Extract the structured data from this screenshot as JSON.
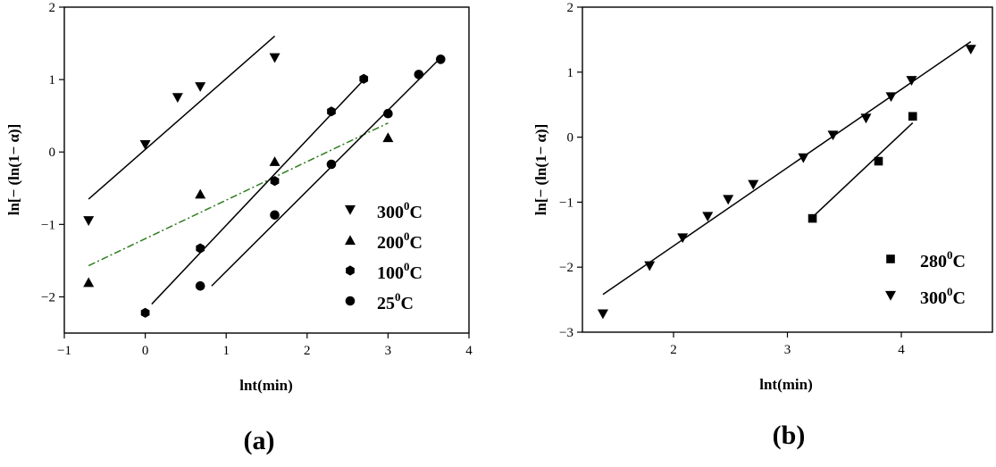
{
  "chart_data": [
    {
      "type": "scatter",
      "panel_label": "(a)",
      "xlabel": "lnt(min)",
      "ylabel": "ln[− (ln(1− α)]",
      "xlim": [
        -1,
        4
      ],
      "ylim": [
        -2.5,
        2
      ],
      "xticks": [
        -1,
        0,
        1,
        2,
        3,
        4
      ],
      "yticks": [
        -2,
        -1,
        0,
        1,
        2
      ],
      "legend_position": "right",
      "series": [
        {
          "name": "300",
          "unit": "C",
          "marker": "triangle-down",
          "x": [
            -0.7,
            0.0,
            0.4,
            0.68,
            1.6
          ],
          "y": [
            -0.95,
            0.1,
            0.75,
            0.9,
            1.3
          ],
          "fit": {
            "x": [
              -0.7,
              1.6
            ],
            "y": [
              -0.65,
              1.6
            ],
            "style": "solid",
            "color": "#000000"
          }
        },
        {
          "name": "200",
          "unit": "C",
          "marker": "triangle-up",
          "x": [
            -0.7,
            0.68,
            1.6,
            3.0
          ],
          "y": [
            -1.8,
            -0.58,
            -0.13,
            0.2
          ],
          "fit": {
            "x": [
              -0.7,
              3.0
            ],
            "y": [
              -1.57,
              0.4
            ],
            "style": "dashdot",
            "color": "#2e7d1f"
          }
        },
        {
          "name": "100",
          "unit": "C",
          "marker": "hexagon",
          "x": [
            0.0,
            0.68,
            1.6,
            2.3,
            2.7
          ],
          "y": [
            -2.22,
            -1.33,
            -0.4,
            0.56,
            1.01
          ],
          "fit": {
            "x": [
              0.08,
              2.72
            ],
            "y": [
              -2.1,
              1.02
            ],
            "style": "solid",
            "color": "#000000"
          }
        },
        {
          "name": "25",
          "unit": "C",
          "marker": "circle",
          "x": [
            0.68,
            1.6,
            2.3,
            3.0,
            3.38,
            3.65
          ],
          "y": [
            -1.85,
            -0.87,
            -0.17,
            0.53,
            1.07,
            1.28
          ],
          "fit": {
            "x": [
              0.82,
              3.65
            ],
            "y": [
              -1.85,
              1.3
            ],
            "style": "solid",
            "color": "#000000"
          }
        }
      ]
    },
    {
      "type": "scatter",
      "panel_label": "(b)",
      "xlabel": "lnt(min)",
      "ylabel": "ln[− (ln(1− α)]",
      "xlim": [
        1.2,
        4.8
      ],
      "ylim": [
        -3,
        2
      ],
      "xticks": [
        2,
        3,
        4
      ],
      "yticks": [
        -3,
        -2,
        -1,
        0,
        1,
        2
      ],
      "legend_position": "bottom-right",
      "series": [
        {
          "name": "280",
          "unit": "C",
          "marker": "square",
          "x": [
            3.22,
            3.8,
            4.1
          ],
          "y": [
            -1.25,
            -0.37,
            0.32
          ],
          "fit": {
            "x": [
              3.22,
              4.1
            ],
            "y": [
              -1.23,
              0.22
            ],
            "style": "solid",
            "color": "#000000"
          }
        },
        {
          "name": "300",
          "unit": "C",
          "marker": "triangle-down",
          "x": [
            1.38,
            1.79,
            2.08,
            2.3,
            2.48,
            2.7,
            3.14,
            3.4,
            3.69,
            3.91,
            4.09,
            4.61
          ],
          "y": [
            -2.72,
            -1.98,
            -1.55,
            -1.22,
            -0.96,
            -0.73,
            -0.32,
            0.03,
            0.29,
            0.62,
            0.87,
            1.35
          ],
          "fit": {
            "x": [
              1.38,
              4.61
            ],
            "y": [
              -2.42,
              1.47
            ],
            "style": "solid",
            "color": "#000000"
          }
        }
      ]
    }
  ]
}
